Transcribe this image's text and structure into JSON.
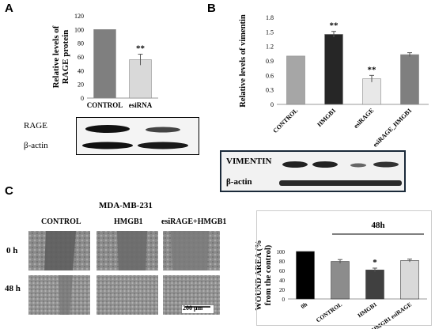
{
  "panels": {
    "a": "A",
    "b": "B",
    "c": "C"
  },
  "panel_a": {
    "blot_labels": [
      "RAGE",
      "β-actin"
    ]
  },
  "panel_b": {
    "blot_labels": [
      "VIMENTIN",
      "β-actin"
    ]
  },
  "panel_c": {
    "cell_line": "MDA-MB-231",
    "columns": [
      "CONTROL",
      "HMGB1",
      "esiRAGE+HMGB1"
    ],
    "rows": [
      "0 h",
      "48 h"
    ],
    "scale_bar": "200 µm",
    "bracket_label": "48h"
  },
  "colors": {
    "dark_bar": "#2b2b2b",
    "mid_bar": "#7f7f7f",
    "light_bar": "#d9d9d9",
    "error": "#555555"
  },
  "chart_data": [
    {
      "type": "bar",
      "title": "",
      "ylabel": "Relative levels of RAGE protein",
      "categories": [
        "CONTROL",
        "esiRNA"
      ],
      "values": [
        100,
        56
      ],
      "errors": [
        0,
        8
      ],
      "significance": [
        "",
        "**"
      ],
      "bar_colors": [
        "#7f7f7f",
        "#d9d9d9"
      ],
      "ylim": [
        0,
        120
      ],
      "yticks": [
        0,
        20,
        40,
        60,
        80,
        100,
        120
      ]
    },
    {
      "type": "bar",
      "title": "",
      "ylabel": "Relative levels of vimentin",
      "categories": [
        "CONTROL",
        "HMGB1",
        "esiRAGE",
        "esiRAGE_HMGB1"
      ],
      "values": [
        1.0,
        1.45,
        0.53,
        1.03
      ],
      "errors": [
        0,
        0.06,
        0.07,
        0.04
      ],
      "significance": [
        "",
        "**",
        "**",
        ""
      ],
      "bar_colors": [
        "#a6a6a6",
        "#262626",
        "#e8e8e8",
        "#7f7f7f"
      ],
      "ylim": [
        0,
        1.8
      ],
      "yticks": [
        "0",
        "0.3",
        "0.6",
        "0.9",
        "1.2",
        "1.5",
        "1.8"
      ]
    },
    {
      "type": "bar",
      "title": "",
      "ylabel": "WOUND AREA (% from the control)",
      "categories": [
        "0h",
        "CONTROL",
        "HMGB1",
        "HMGB1 esiRAGE"
      ],
      "values": [
        100,
        79,
        61,
        81
      ],
      "errors": [
        0,
        4,
        4,
        3
      ],
      "significance": [
        "",
        "",
        "*",
        ""
      ],
      "bar_colors": [
        "#000000",
        "#8c8c8c",
        "#404040",
        "#d9d9d9"
      ],
      "ylim": [
        0,
        100
      ],
      "yticks": [
        0,
        20,
        40,
        60,
        80,
        100
      ]
    }
  ]
}
